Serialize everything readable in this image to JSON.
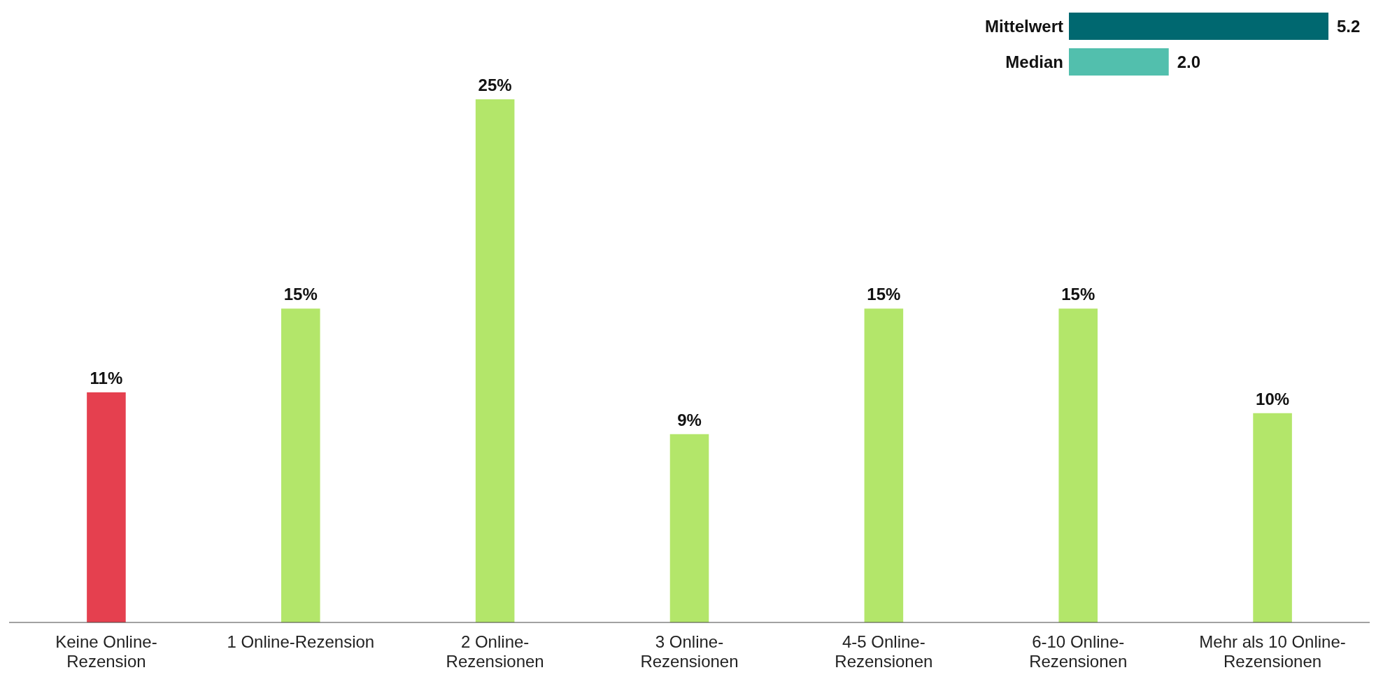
{
  "chart_data": [
    {
      "type": "bar",
      "categories": [
        "Keine Online-Rezension",
        "1 Online-Rezension",
        "2 Online-Rezensionen",
        "3 Online-Rezensionen",
        "4-5 Online-Rezensionen",
        "6-10 Online-Rezensionen",
        "Mehr als 10 Online-Rezensionen"
      ],
      "values": [
        11,
        15,
        25,
        9,
        15,
        15,
        10
      ],
      "value_labels": [
        "11%",
        "15%",
        "25%",
        "9%",
        "15%",
        "15%",
        "10%"
      ],
      "colors": [
        "#e5404f",
        "#b3e66a",
        "#b3e66a",
        "#b3e66a",
        "#b3e66a",
        "#b3e66a",
        "#b3e66a"
      ],
      "tick_labels": "x"
    },
    {
      "type": "bar",
      "orientation": "horizontal",
      "categories": [
        "Mittelwert",
        "Median"
      ],
      "values": [
        5.2,
        2.0
      ],
      "value_labels": [
        "5.2",
        "2.0"
      ],
      "colors": [
        "#006870",
        "#52bfad"
      ],
      "tick_labels": "y"
    }
  ]
}
